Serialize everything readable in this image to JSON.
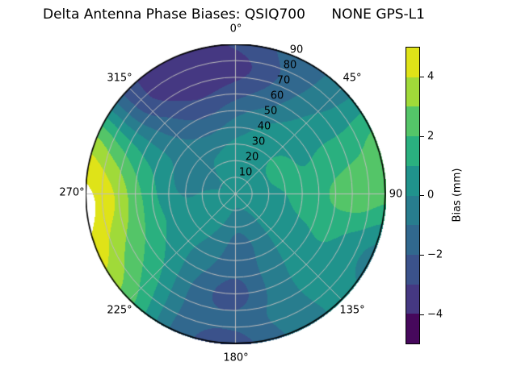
{
  "title": "Delta Antenna Phase Biases: QSIQ700      NONE GPS-L1",
  "chart_data": {
    "type": "polar_contour",
    "title": "Delta Antenna Phase Biases: QSIQ700      NONE GPS-L1",
    "station": "QSIQ700",
    "signal": "NONE GPS-L1",
    "angle_labels": [
      "0°",
      "45°",
      "90",
      "135°",
      "180°",
      "225°",
      "270°",
      "315°"
    ],
    "angle_convention": "azimuth degrees clockwise from top",
    "radial_ticks": [
      10,
      20,
      30,
      40,
      50,
      60,
      70,
      80,
      90
    ],
    "radial_axis": "zenith angle, 0 at center to 90 at rim",
    "rlabel_angle_deg": 22.5,
    "levels": [
      -5,
      -4,
      -3,
      -2,
      -1,
      0,
      1,
      2,
      3,
      4,
      5
    ],
    "band_colors": [
      "#46085c",
      "#453882",
      "#3b528b",
      "#31688e",
      "#287d8e",
      "#20938c",
      "#2ab07f",
      "#54c568",
      "#a0da39",
      "#dfe318"
    ],
    "over_color": "#ffffff",
    "grid_line_color": "#bdbdbd",
    "outline_color": "#000000",
    "colorbar": {
      "label": "Bias (mm)",
      "ticks": [
        {
          "value": 4,
          "label": "4"
        },
        {
          "value": 2,
          "label": "2"
        },
        {
          "value": 0,
          "label": "0"
        },
        {
          "value": -2,
          "label": "−2"
        },
        {
          "value": -4,
          "label": "−4"
        }
      ],
      "range": [
        -5,
        5
      ]
    },
    "grid": {
      "azimuth_deg": [
        0,
        22.5,
        45,
        67.5,
        90,
        112.5,
        135,
        157.5,
        180,
        202.5,
        225,
        247.5,
        270,
        292.5,
        315,
        337.5,
        360
      ],
      "zenith_deg": [
        0,
        15,
        30,
        45,
        60,
        75,
        90
      ],
      "bias_mm": [
        [
          0.5,
          0.5,
          0.5,
          0.5,
          0.5,
          0.5,
          0.5,
          0.5,
          0.5,
          0.5,
          0.5,
          0.5,
          0.5,
          0.5,
          0.5,
          0.5,
          0.5
        ],
        [
          0.5,
          0.6,
          0.8,
          0.8,
          0.7,
          0.5,
          0.2,
          -0.3,
          -0.5,
          0.1,
          0.4,
          0.5,
          0.3,
          -0.3,
          0.0,
          0.4,
          0.5
        ],
        [
          0.2,
          0.5,
          1.0,
          1.2,
          1.0,
          0.8,
          0.3,
          -0.8,
          -1.3,
          -0.3,
          0.3,
          0.6,
          -0.1,
          -0.6,
          -0.3,
          -0.2,
          0.2
        ],
        [
          -0.9,
          0.0,
          0.7,
          1.0,
          1.4,
          1.0,
          0.4,
          -0.7,
          -1.7,
          -0.8,
          0.3,
          1.0,
          0.8,
          0.3,
          -0.9,
          -1.6,
          -0.9
        ],
        [
          -2.3,
          -1.2,
          0.3,
          1.3,
          2.2,
          1.2,
          0.5,
          -0.6,
          -2.4,
          -1.3,
          0.9,
          2.1,
          2.4,
          1.0,
          -1.6,
          -2.9,
          -2.3
        ],
        [
          -3.4,
          -1.8,
          -0.2,
          1.6,
          2.6,
          0.6,
          0.3,
          -0.5,
          -1.8,
          -1.3,
          1.6,
          3.3,
          4.2,
          2.0,
          -2.5,
          -3.7,
          -3.4
        ],
        [
          -2.9,
          -1.6,
          -0.5,
          2.2,
          2.3,
          -0.2,
          0.2,
          -0.8,
          -2.3,
          -1.5,
          2.3,
          4.6,
          5.2,
          3.0,
          -2.6,
          -3.1,
          -2.9
        ]
      ]
    }
  }
}
